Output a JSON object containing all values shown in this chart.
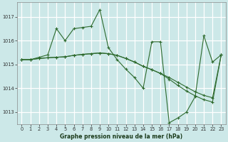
{
  "bg_color": "#cce8e8",
  "plot_bg_color": "#cce8e8",
  "grid_color": "#ffffff",
  "line_color": "#2d6a2d",
  "marker_color": "#2d6a2d",
  "title": "Graphe pression niveau de la mer (hPa)",
  "xlim": [
    -0.5,
    23.5
  ],
  "ylim": [
    1012.5,
    1017.6
  ],
  "yticks": [
    1013,
    1014,
    1015,
    1016,
    1017
  ],
  "xticks": [
    0,
    1,
    2,
    3,
    4,
    5,
    6,
    7,
    8,
    9,
    10,
    11,
    12,
    13,
    14,
    15,
    16,
    17,
    18,
    19,
    20,
    21,
    22,
    23
  ],
  "main_series": [
    1015.2,
    1015.2,
    1015.3,
    1015.4,
    1016.5,
    1016.0,
    1016.5,
    1016.55,
    1016.6,
    1017.3,
    1015.7,
    1015.2,
    1014.8,
    1014.45,
    1014.0,
    1015.95,
    1015.95,
    1012.55,
    1012.75,
    1013.0,
    1013.65,
    1016.2,
    1015.1,
    1015.4
  ],
  "trend1": [
    1015.2,
    1015.2,
    1015.25,
    1015.28,
    1015.3,
    1015.32,
    1015.38,
    1015.42,
    1015.45,
    1015.48,
    1015.45,
    1015.38,
    1015.25,
    1015.1,
    1014.92,
    1014.78,
    1014.62,
    1014.45,
    1014.25,
    1014.05,
    1013.85,
    1013.7,
    1013.6,
    1015.4
  ],
  "trend2": [
    1015.2,
    1015.2,
    1015.25,
    1015.28,
    1015.3,
    1015.32,
    1015.38,
    1015.42,
    1015.45,
    1015.48,
    1015.45,
    1015.38,
    1015.25,
    1015.1,
    1014.92,
    1014.78,
    1014.62,
    1014.38,
    1014.12,
    1013.88,
    1013.68,
    1013.52,
    1013.42,
    1015.4
  ],
  "title_fontsize": 5.5,
  "tick_fontsize": 4.8,
  "xlabel_fontsize": 5.5
}
